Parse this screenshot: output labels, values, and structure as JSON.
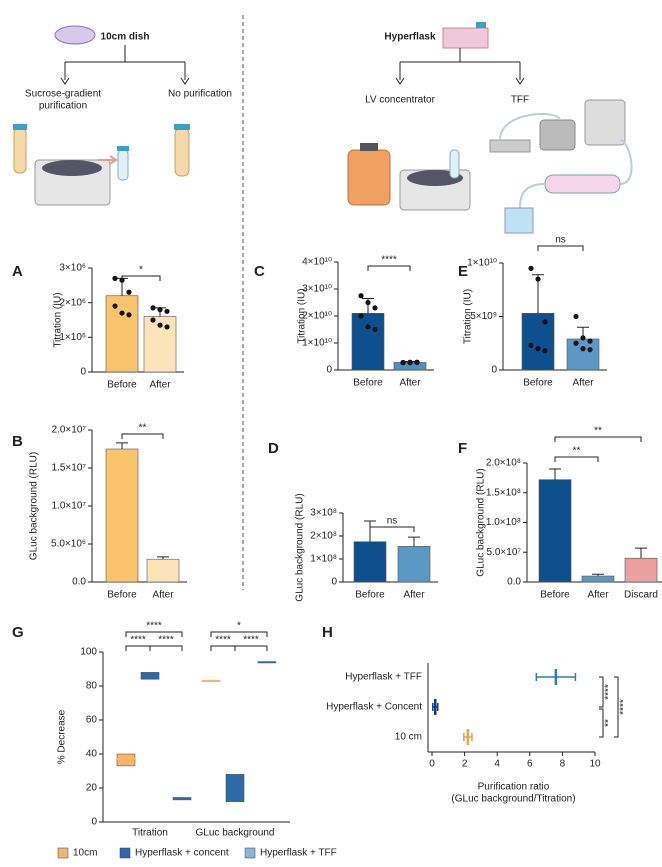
{
  "diagram": {
    "left_title": "10cm dish",
    "left_options": [
      [
        "Sucrose-gradient",
        "purification"
      ],
      [
        "No purification"
      ]
    ],
    "right_title": "Hyperflask",
    "right_options": [
      [
        "LV concentrator"
      ],
      [
        "TFF"
      ]
    ]
  },
  "chart_data": [
    {
      "type": "bar",
      "panel": "A",
      "ylabel": "Titration (IU)",
      "categories": [
        "Before",
        "After"
      ],
      "values": [
        2200000,
        1600000
      ],
      "errors": [
        500000,
        250000
      ],
      "points": [
        [
          2700000,
          2650000,
          2300000,
          1900000,
          1700000,
          1650000
        ],
        [
          1850000,
          1800000,
          1750000,
          1500000,
          1350000,
          1300000
        ]
      ],
      "colors": [
        "#f9c46b",
        "#fde4b8"
      ],
      "ylim": [
        0,
        3000000
      ],
      "yticks": [
        0,
        {
          "value": 1000000,
          "label": "1×10⁶"
        },
        {
          "value": 2000000,
          "label": "2×10⁶"
        },
        {
          "value": 3000000,
          "label": "3×10⁶"
        }
      ],
      "significance": [
        "*"
      ]
    },
    {
      "type": "bar",
      "panel": "C",
      "ylabel": "Titration (IU)",
      "categories": [
        "Before",
        "After"
      ],
      "values": [
        21000000000,
        2800000000
      ],
      "errors": [
        5500000000,
        300000000
      ],
      "points": [
        [
          27500000000,
          25000000000,
          23000000000,
          20000000000,
          16000000000,
          15000000000
        ],
        [
          2700000000,
          2700000000,
          2800000000,
          2800000000,
          2900000000,
          2900000000
        ]
      ],
      "colors": [
        "#0e4f8e",
        "#4f8fc2"
      ],
      "ylim": [
        0,
        40000000000
      ],
      "yticks": [
        0,
        {
          "value": 10000000000,
          "label": "1×10¹⁰"
        },
        {
          "value": 20000000000,
          "label": "2×10¹⁰"
        },
        {
          "value": 30000000000,
          "label": "3×10¹⁰"
        },
        {
          "value": 40000000000,
          "label": "4×10¹⁰"
        }
      ],
      "significance": [
        "****"
      ]
    },
    {
      "type": "bar",
      "panel": "E",
      "ylabel": "Titration (IU)",
      "categories": [
        "Before",
        "After"
      ],
      "values": [
        5300000000,
        2900000000
      ],
      "errors": [
        3600000000,
        1100000000
      ],
      "points": [
        [
          9500000000,
          8500000000,
          4500000000,
          2300000000,
          2000000000,
          1800000000
        ],
        [
          5000000000,
          3000000000,
          2700000000,
          2500000000,
          2000000000,
          1900000000
        ]
      ],
      "colors": [
        "#0e4f8e",
        "#5b98c6"
      ],
      "ylim": [
        0,
        10000000000
      ],
      "yticks": [
        0,
        {
          "value": 5000000000,
          "label": "5×10⁹"
        },
        {
          "value": 10000000000,
          "label": "1×10¹⁰"
        }
      ],
      "significance": [
        "ns"
      ]
    },
    {
      "type": "bar",
      "panel": "B",
      "ylabel": "GLuc background (RLU)",
      "categories": [
        "Before",
        "After"
      ],
      "values": [
        17500000,
        3000000
      ],
      "errors": [
        800000,
        300000
      ],
      "colors": [
        "#f9c46b",
        "#fde4b8"
      ],
      "ylim": [
        0,
        20000000
      ],
      "yticks": [
        {
          "value": 0,
          "label": "0.0"
        },
        {
          "value": 5000000,
          "label": "5.0×10⁶"
        },
        {
          "value": 10000000,
          "label": "1.0×10⁷"
        },
        {
          "value": 15000000,
          "label": "1.5×10⁷"
        },
        {
          "value": 20000000,
          "label": "2.0×10⁷"
        }
      ],
      "significance": [
        "**"
      ]
    },
    {
      "type": "bar",
      "panel": "D",
      "ylabel": "GLuc background (RLU)",
      "categories": [
        "Before",
        "After"
      ],
      "values": [
        175000000,
        155000000
      ],
      "errors": [
        90000000,
        40000000
      ],
      "colors": [
        "#0e4f8e",
        "#5b98c6"
      ],
      "ylim": [
        0,
        300000000
      ],
      "yticks": [
        0,
        {
          "value": 100000000,
          "label": "1×10⁸"
        },
        {
          "value": 200000000,
          "label": "2×10⁸"
        },
        {
          "value": 300000000,
          "label": "3×10⁸"
        }
      ],
      "significance": [
        "ns"
      ]
    },
    {
      "type": "bar",
      "panel": "F",
      "ylabel": "GLuc background (RLU)",
      "categories": [
        "Before",
        "After",
        "Discard"
      ],
      "values": [
        172000000,
        10000000,
        40000000
      ],
      "errors": [
        18000000,
        3000000,
        17000000
      ],
      "colors": [
        "#0e4f8e",
        "#5b98c6",
        "#ec9f9f"
      ],
      "ylim": [
        0,
        200000000
      ],
      "yticks": [
        {
          "value": 0,
          "label": "0.0"
        },
        {
          "value": 50000000,
          "label": "5.0×10⁷"
        },
        {
          "value": 100000000,
          "label": "1.0×10⁸"
        },
        {
          "value": 150000000,
          "label": "1.5×10⁸"
        },
        {
          "value": 200000000,
          "label": "2.0×10⁸"
        }
      ],
      "significance": [
        "**",
        "**"
      ]
    },
    {
      "type": "floating-bar",
      "panel": "G",
      "ylabel": "% Decrease",
      "categories": [
        "Titration",
        "GLuc background"
      ],
      "series": [
        {
          "name": "10cm",
          "color": "#f8b36a",
          "low": [
            33,
            83
          ],
          "median": [
            37,
            83
          ],
          "high": [
            40,
            83
          ]
        },
        {
          "name": "Hyperflask + concent",
          "color": "#2e6aa8",
          "low": [
            84,
            12
          ],
          "median": [
            86,
            20
          ],
          "high": [
            88,
            28
          ]
        },
        {
          "name": "Hyperflask + TFF",
          "color": "#8ab4d8",
          "low": [
            13,
            94
          ],
          "median": [
            13.5,
            94
          ],
          "high": [
            14.5,
            94
          ]
        }
      ],
      "ylim": [
        0,
        100
      ],
      "yticks": [
        0,
        20,
        40,
        60,
        80,
        100
      ],
      "significance": [
        [
          "****",
          "****",
          "****"
        ],
        [
          "*",
          "****",
          "****"
        ]
      ]
    },
    {
      "type": "dot-error",
      "panel": "H",
      "xlabel": [
        "Purification ratio",
        "(GLuc background/Titration)"
      ],
      "categories": [
        "Hyperflask + TFF",
        "Hyperflask + Concent",
        "10 cm"
      ],
      "values": [
        7.6,
        0.2,
        2.2
      ],
      "errors": [
        1.2,
        0.15,
        0.25
      ],
      "colors": [
        "#2a7ab8",
        "#0b3d8c",
        "#f3a04a"
      ],
      "xlim": [
        0,
        10
      ],
      "xticks": [
        0,
        2,
        4,
        6,
        8,
        10
      ],
      "significance": [
        "****",
        "****",
        "**"
      ]
    }
  ]
}
